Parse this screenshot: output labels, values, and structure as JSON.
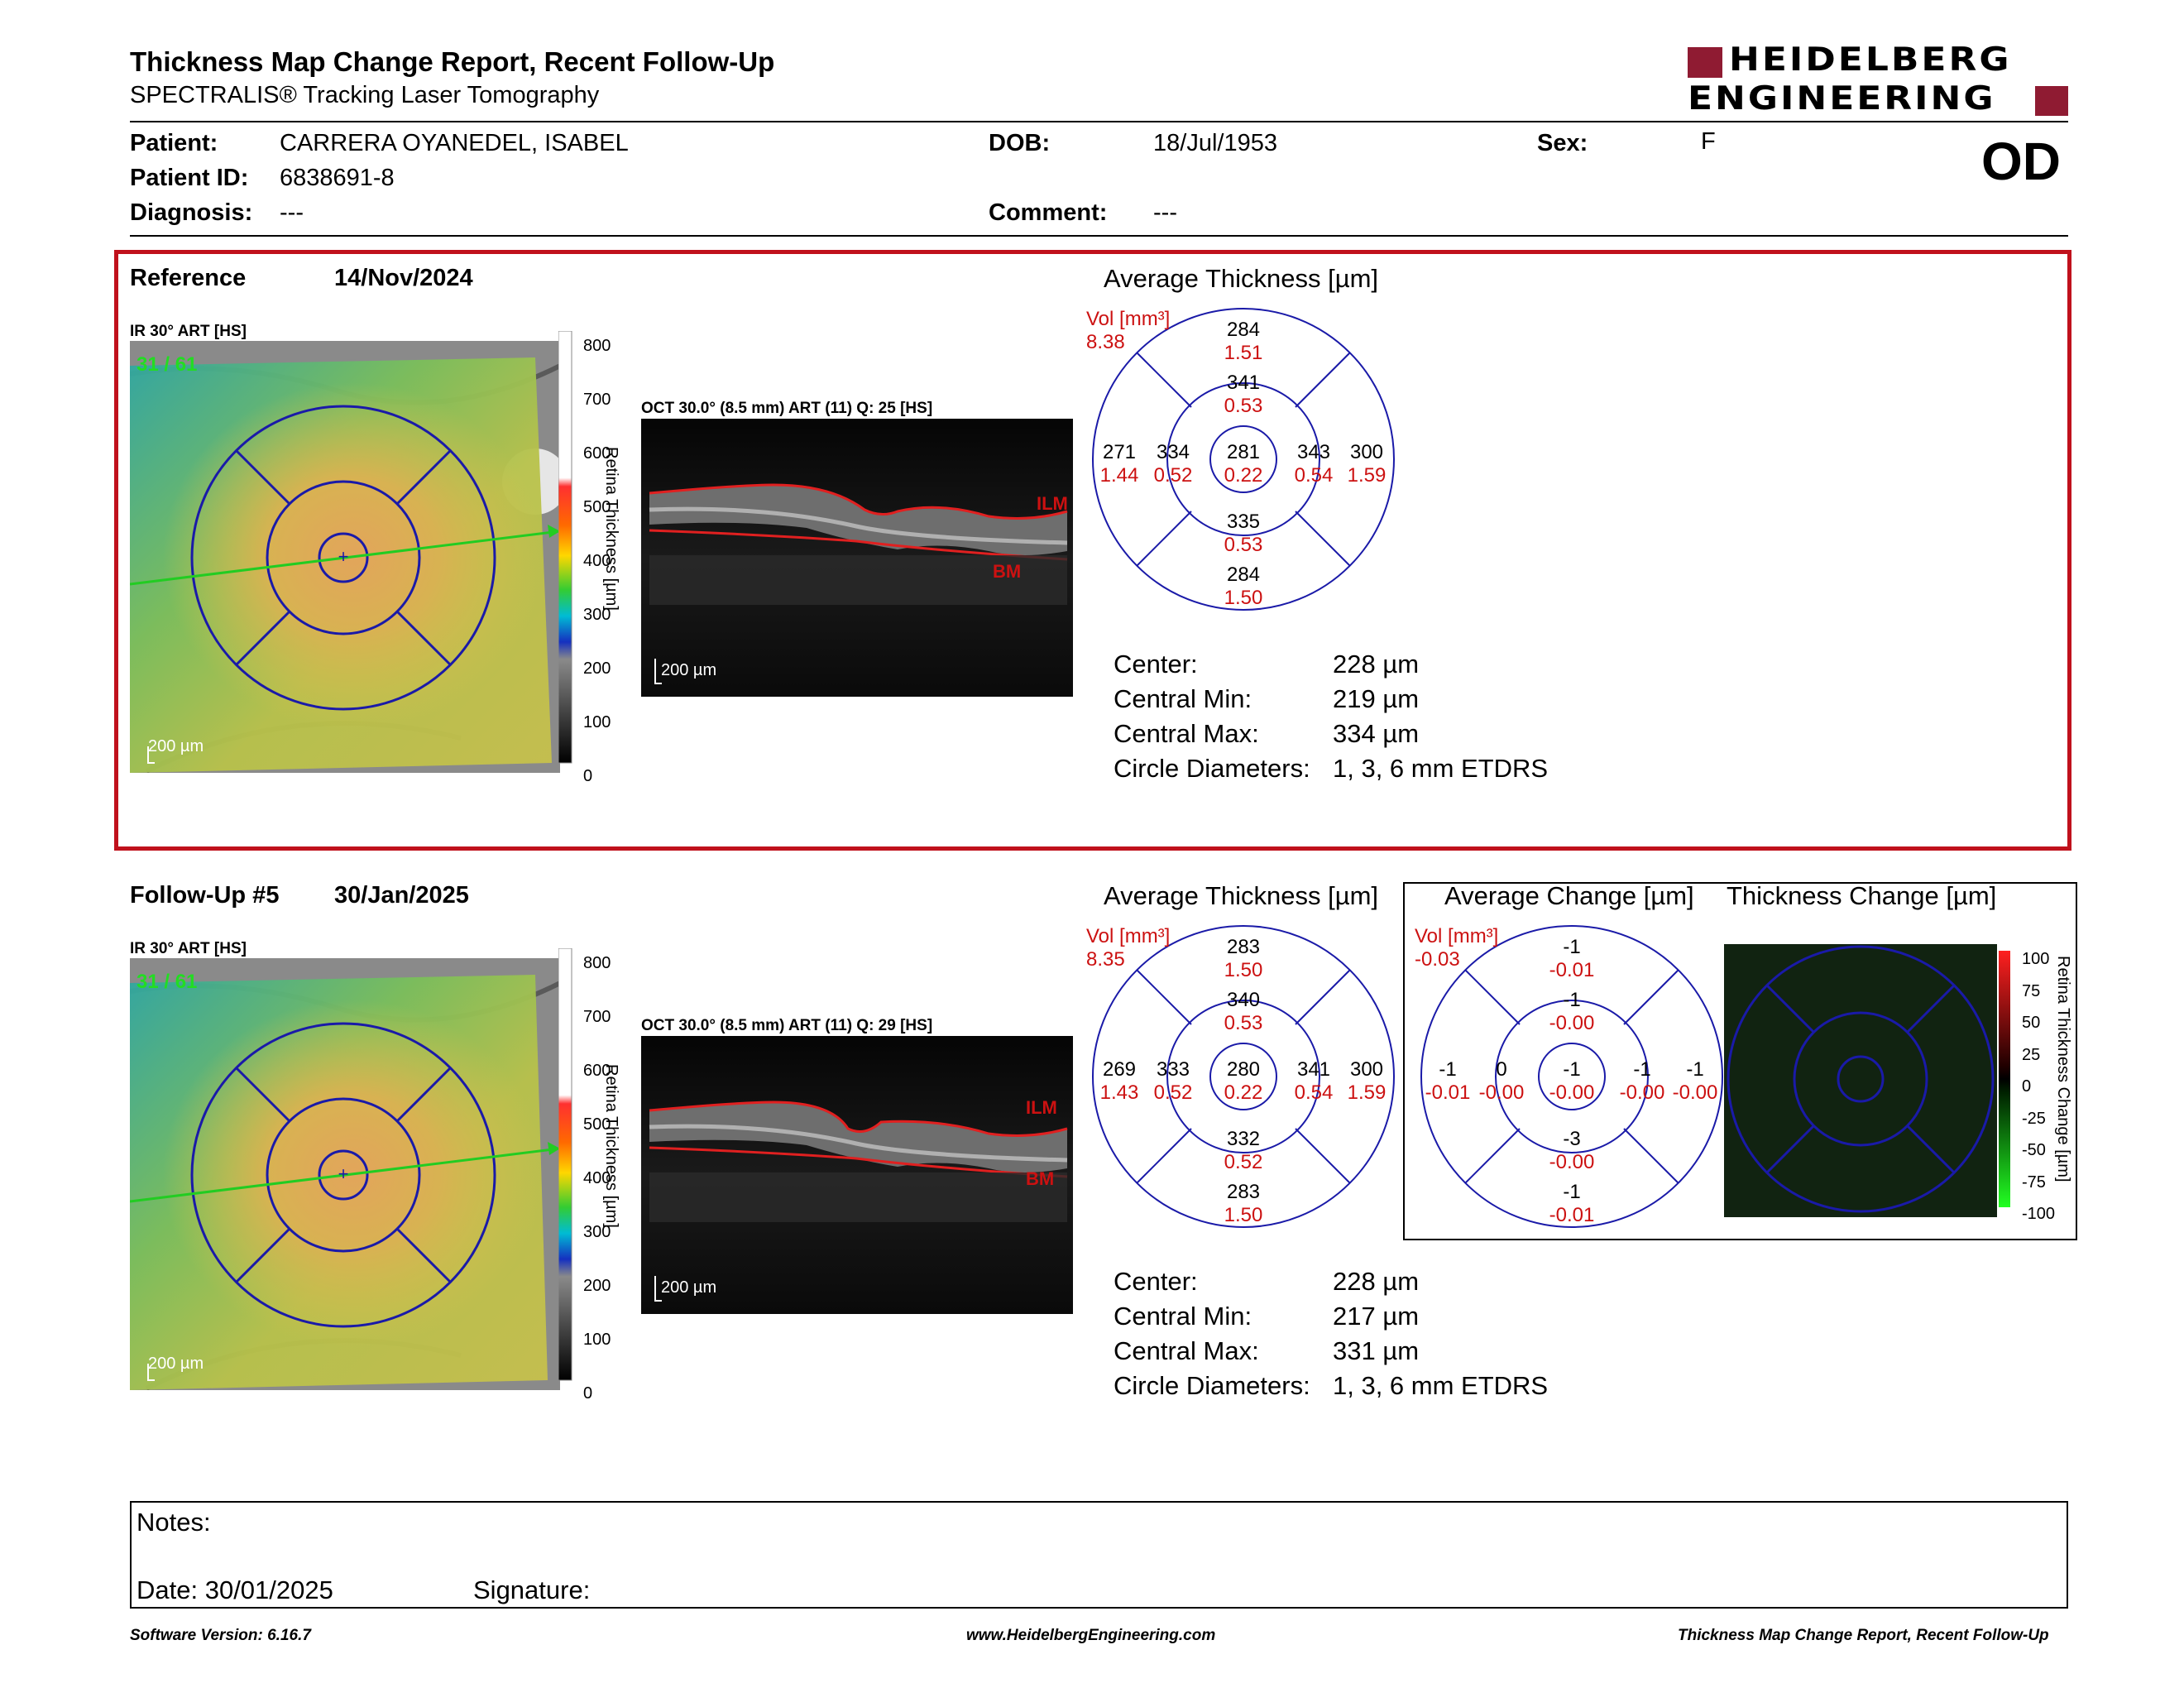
{
  "header": {
    "title": "Thickness Map Change Report, Recent Follow-Up",
    "subtitle": "SPECTRALIS® Tracking Laser Tomography",
    "logo_line1": "HEIDELBERG",
    "logo_line2": "ENGINEERING",
    "eye": "OD"
  },
  "patient": {
    "name_label": "Patient:",
    "name": "CARRERA OYANEDEL, ISABEL",
    "id_label": "Patient ID:",
    "id": "6838691-8",
    "diagnosis_label": "Diagnosis:",
    "diagnosis": "---",
    "dob_label": "DOB:",
    "dob": "18/Jul/1953",
    "comment_label": "Comment:",
    "comment": "---",
    "sex_label": "Sex:",
    "sex": "F"
  },
  "reference": {
    "label": "Reference",
    "date": "14/Nov/2024",
    "ir_label": "IR 30° ART [HS]",
    "ir_overlay": "31 / 61",
    "oct_label": "OCT 30.0° (8.5 mm) ART (11) Q: 25 [HS]",
    "scale_label": "200 µm",
    "colorbar_ticks": [
      "800",
      "700",
      "600",
      "500",
      "400",
      "300",
      "200",
      "100",
      "0"
    ],
    "colorbar_title": "Retina Thickness [µm]",
    "ilm": "ILM",
    "bm": "BM",
    "avg_title": "Average Thickness [µm]",
    "vol_label": "Vol [mm³]",
    "vol_value": "8.38",
    "etdrs": {
      "center": [
        "281",
        "0.22"
      ],
      "inner_sup": [
        "341",
        "0.53"
      ],
      "inner_inf": [
        "335",
        "0.53"
      ],
      "inner_nas": [
        "334",
        "0.52"
      ],
      "inner_tmp": [
        "343",
        "0.54"
      ],
      "outer_sup": [
        "284",
        "1.51"
      ],
      "outer_inf": [
        "284",
        "1.50"
      ],
      "outer_nas": [
        "271",
        "1.44"
      ],
      "outer_tmp": [
        "300",
        "1.59"
      ]
    },
    "stats": [
      {
        "label": "Center:",
        "value": "228 µm"
      },
      {
        "label": "Central Min:",
        "value": "219 µm"
      },
      {
        "label": "Central Max:",
        "value": "334 µm"
      },
      {
        "label": "Circle Diameters:",
        "value": "1, 3, 6 mm ETDRS"
      }
    ]
  },
  "followup": {
    "label": "Follow-Up #5",
    "date": "30/Jan/2025",
    "ir_label": "IR 30° ART [HS]",
    "ir_overlay": "31 / 61",
    "oct_label": "OCT 30.0° (8.5 mm) ART (11) Q: 29 [HS]",
    "scale_label": "200 µm",
    "colorbar_ticks": [
      "800",
      "700",
      "600",
      "500",
      "400",
      "300",
      "200",
      "100",
      "0"
    ],
    "colorbar_title": "Retina Thickness [µm]",
    "ilm": "ILM",
    "bm": "BM",
    "avg_title": "Average Thickness [µm]",
    "vol_label": "Vol [mm³]",
    "vol_value": "8.35",
    "etdrs": {
      "center": [
        "280",
        "0.22"
      ],
      "inner_sup": [
        "340",
        "0.53"
      ],
      "inner_inf": [
        "332",
        "0.52"
      ],
      "inner_nas": [
        "333",
        "0.52"
      ],
      "inner_tmp": [
        "341",
        "0.54"
      ],
      "outer_sup": [
        "283",
        "1.50"
      ],
      "outer_inf": [
        "283",
        "1.50"
      ],
      "outer_nas": [
        "269",
        "1.43"
      ],
      "outer_tmp": [
        "300",
        "1.59"
      ]
    },
    "stats": [
      {
        "label": "Center:",
        "value": "228 µm"
      },
      {
        "label": "Central Min:",
        "value": "217 µm"
      },
      {
        "label": "Central Max:",
        "value": "331 µm"
      },
      {
        "label": "Circle Diameters:",
        "value": "1, 3, 6 mm ETDRS"
      }
    ]
  },
  "change": {
    "avg_title": "Average Change [µm]",
    "vol_label": "Vol [mm³]",
    "vol_value": "-0.03",
    "etdrs": {
      "center": [
        "-1",
        "-0.00"
      ],
      "inner_sup": [
        "-1",
        "-0.00"
      ],
      "inner_inf": [
        "-3",
        "-0.00"
      ],
      "inner_nas": [
        "0",
        "-0.00"
      ],
      "inner_tmp": [
        "-1",
        "-0.00"
      ],
      "outer_sup": [
        "-1",
        "-0.01"
      ],
      "outer_inf": [
        "-1",
        "-0.01"
      ],
      "outer_nas": [
        "-1",
        "-0.01"
      ],
      "outer_tmp": [
        "-1",
        "-0.00"
      ]
    },
    "map_title": "Thickness Change [µm]",
    "colorbar_ticks": [
      "100",
      "75",
      "50",
      "25",
      "0",
      "-25",
      "-50",
      "-75",
      "-100"
    ],
    "colorbar_title": "Retina Thickness Change [µm]"
  },
  "notes": {
    "label": "Notes:",
    "date": "Date: 30/01/2025",
    "signature": "Signature:"
  },
  "footer": {
    "left": "Software Version: 6.16.7",
    "center": "www.HeidelbergEngineering.com",
    "right": "Thickness Map Change Report, Recent Follow-Up"
  },
  "colors": {
    "etdrs_blue": "#1a1aa8",
    "value_red": "#cc1111",
    "frame_red": "#c0111c",
    "logo_red": "#8f1b32",
    "scan_line": "#22cc22"
  }
}
